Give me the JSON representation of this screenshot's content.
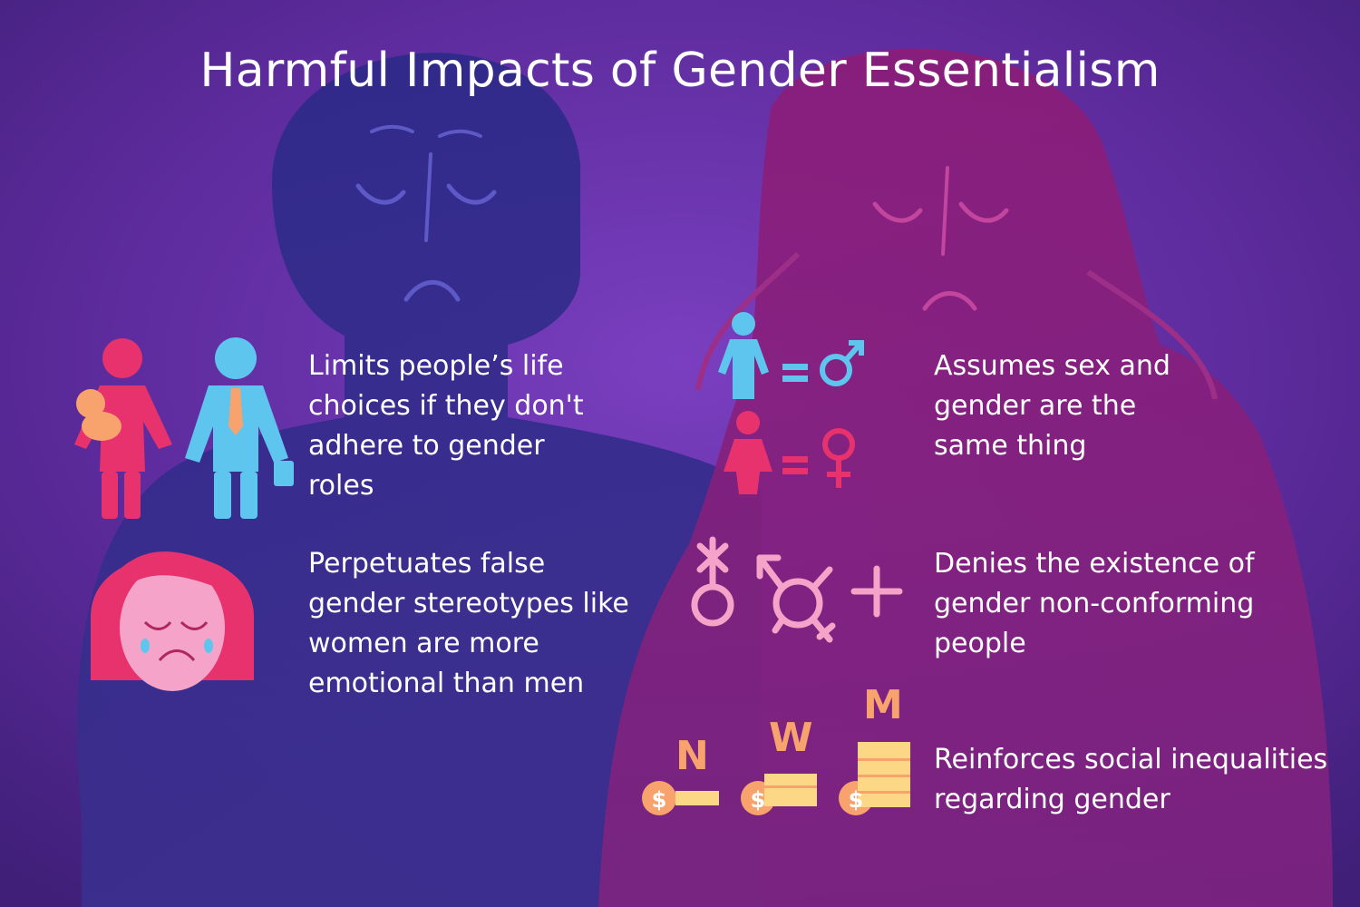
{
  "title": "Harmful Impacts of Gender Essentialism",
  "impacts": [
    {
      "text": "Limits people’s life choices if they don't adhere to gender roles"
    },
    {
      "text": "Perpetuates false gender stereotypes like women are more emotional than men"
    },
    {
      "text": "Assumes sex and gender are the same thing"
    },
    {
      "text": "Denies the existence of gender non-conforming people"
    },
    {
      "text": "Reinforces social inequalities regarding gender"
    }
  ],
  "wage_labels": [
    "N",
    "W",
    "M"
  ],
  "icons": {
    "male": "male-symbol-icon",
    "female": "female-symbol-icon",
    "equals": "equals-sign",
    "plus": "plus-icon",
    "coin": "dollar-coin-icon"
  },
  "colors": {
    "background": "#5b2a9a",
    "man_silhouette": "#2e2a86",
    "woman_silhouette": "#8a1f78",
    "blue": "#5ec6ee",
    "pink": "#e8326e",
    "light_pink": "#f5a3c8",
    "peach": "#f8a36e",
    "gold": "#fbd786"
  }
}
